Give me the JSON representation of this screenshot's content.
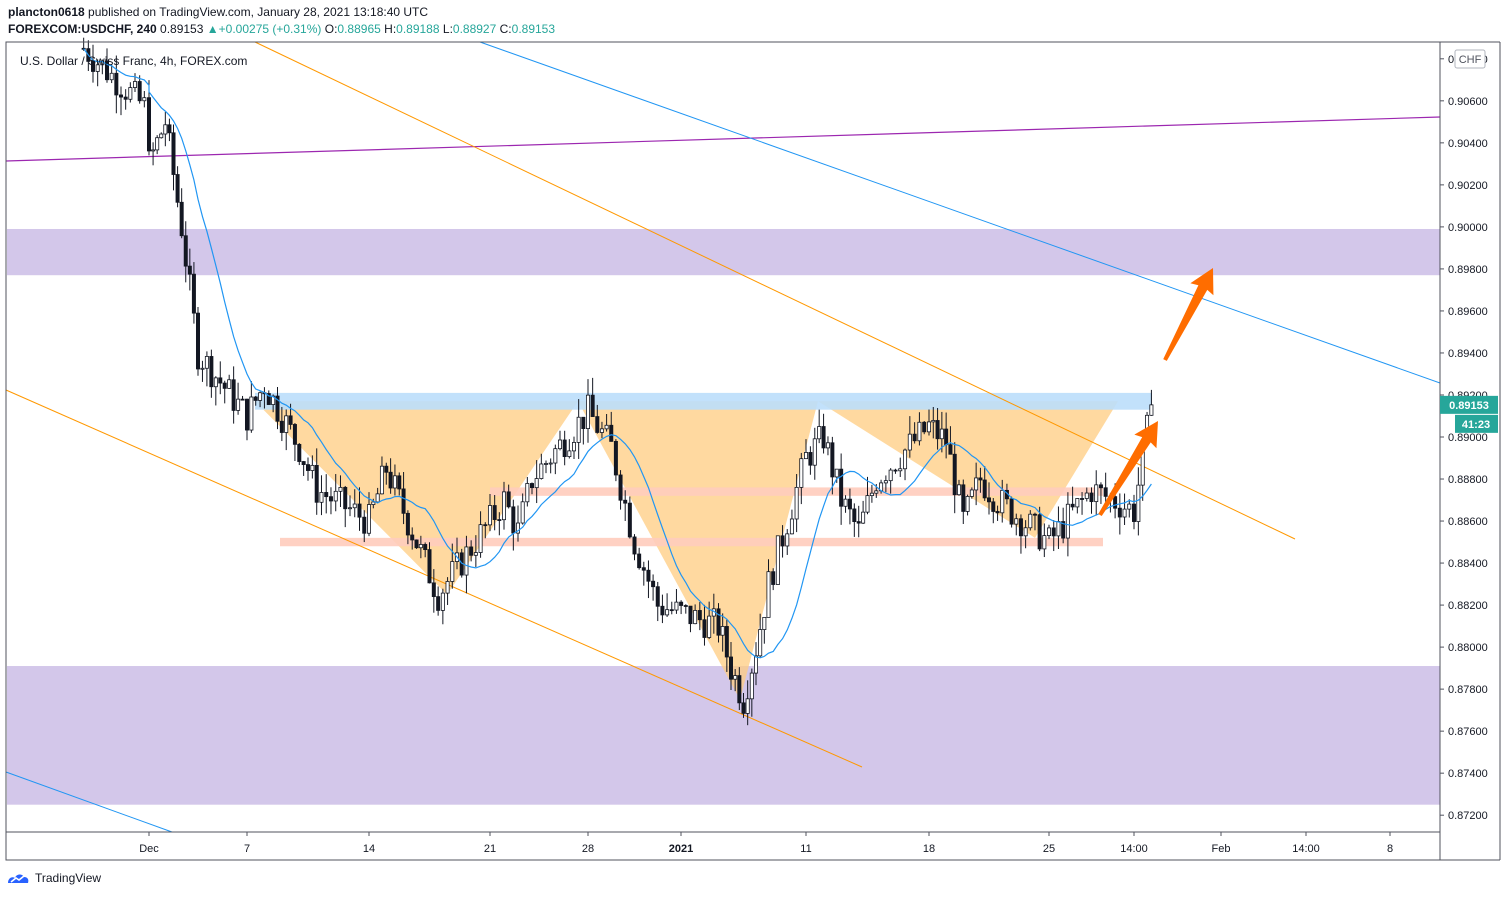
{
  "header": {
    "publisher": "plancton0618",
    "published_text": "published on TradingView.com, January 28, 2021 13:18:40 UTC"
  },
  "legend": {
    "symbol_interval": "FOREXCOM:USDCHF, 240",
    "last": "0.89153",
    "change_arrow": "▲",
    "change": "+0.00275 (+0.31%)",
    "o_label": "O:",
    "o": "0.88965",
    "h_label": "H:",
    "h": "0.89188",
    "l_label": "L:",
    "l": "0.88927",
    "c_label": "C:",
    "c": "0.89153",
    "description": "U.S. Dollar / Swiss Franc, 4h, FOREX.com"
  },
  "price_axis": {
    "currency_badge": "CHF",
    "ticks": [
      "0.90800",
      "0.90600",
      "0.90400",
      "0.90200",
      "0.90000",
      "0.89800",
      "0.89600",
      "0.89400",
      "0.89200",
      "0.89000",
      "0.88800",
      "0.88600",
      "0.88400",
      "0.88200",
      "0.88000",
      "0.87800",
      "0.87600",
      "0.87400",
      "0.87200"
    ],
    "last_price_label": "0.89153",
    "countdown_label": "41:23"
  },
  "time_axis": {
    "ticks": [
      {
        "label": "Dec",
        "bold": false
      },
      {
        "label": "7",
        "bold": false
      },
      {
        "label": "14",
        "bold": false
      },
      {
        "label": "21",
        "bold": false
      },
      {
        "label": "28",
        "bold": false
      },
      {
        "label": "2021",
        "bold": true
      },
      {
        "label": "11",
        "bold": false
      },
      {
        "label": "18",
        "bold": false
      },
      {
        "label": "25",
        "bold": false
      },
      {
        "label": "14:00",
        "bold": false
      },
      {
        "label": "Feb",
        "bold": false
      },
      {
        "label": "14:00",
        "bold": false
      },
      {
        "label": "8",
        "bold": false
      }
    ]
  },
  "footer": {
    "brand": "TradingView"
  },
  "colors": {
    "up_candle": "#ffffff",
    "down_candle": "#131722",
    "ma_line": "#2196f3",
    "zone_fill": "#d1c4e9",
    "pattern_fill": "#ffcc80",
    "level_fill": "#ffccbc",
    "resistance_fill": "#bbdefb",
    "channel_line": "#ff9800",
    "trend_line_blue": "#2196f3",
    "trend_line_purple": "#9c27b0",
    "arrow": "#ff6d00",
    "price_badge": "#26a69a"
  },
  "chart_data": {
    "type": "candlestick",
    "title": "U.S. Dollar / Swiss Franc, 4h, FOREX.com",
    "symbol": "FOREXCOM:USDCHF",
    "interval": "240",
    "ylim": [
      0.8712,
      0.9088
    ],
    "last_close": 0.89153,
    "price_path": [
      [
        "Nov 26",
        0.9085
      ],
      [
        "Nov 30",
        0.9055
      ],
      [
        "Dec 1",
        0.903
      ],
      [
        "Dec 2",
        0.905
      ],
      [
        "Dec 3",
        0.9
      ],
      [
        "Dec 4",
        0.894
      ],
      [
        "Dec 7",
        0.891
      ],
      [
        "Dec 8",
        0.8925
      ],
      [
        "Dec 10",
        0.8895
      ],
      [
        "Dec 11",
        0.8875
      ],
      [
        "Dec 14",
        0.886
      ],
      [
        "Dec 15",
        0.8885
      ],
      [
        "Dec 17",
        0.8845
      ],
      [
        "Dec 18",
        0.8825
      ],
      [
        "Dec 21",
        0.886
      ],
      [
        "Dec 22",
        0.887
      ],
      [
        "Dec 23",
        0.8855
      ],
      [
        "Dec 24",
        0.888
      ],
      [
        "Dec 28",
        0.8912
      ],
      [
        "Dec 29",
        0.8895
      ],
      [
        "Dec 30",
        0.885
      ],
      [
        "Dec 31",
        0.882
      ],
      [
        "Jan 4",
        0.881
      ],
      [
        "Jan 5",
        0.879
      ],
      [
        "Jan 6",
        0.8775
      ],
      [
        "Jan 7",
        0.88
      ],
      [
        "Jan 8",
        0.883
      ],
      [
        "Jan 11",
        0.889
      ],
      [
        "Jan 12",
        0.89
      ],
      [
        "Jan 13",
        0.887
      ],
      [
        "Jan 14",
        0.8855
      ],
      [
        "Jan 15",
        0.888
      ],
      [
        "Jan 18",
        0.8905
      ],
      [
        "Jan 19",
        0.8898
      ],
      [
        "Jan 20",
        0.886
      ],
      [
        "Jan 21",
        0.888
      ],
      [
        "Jan 22",
        0.887
      ],
      [
        "Jan 25",
        0.885
      ],
      [
        "Jan 26",
        0.8875
      ],
      [
        "Jan 27",
        0.8865
      ],
      [
        "Jan 28",
        0.89153
      ]
    ],
    "moving_average_color": "#2196f3",
    "zones": [
      {
        "name": "upper supply zone",
        "from": 0.8977,
        "to": 0.8999
      },
      {
        "name": "lower demand zone",
        "from": 0.8725,
        "to": 0.8791
      }
    ],
    "levels": [
      {
        "name": "neckline resistance",
        "price": 0.8917
      },
      {
        "name": "mid level",
        "price": 0.8874
      },
      {
        "name": "lower level",
        "price": 0.885
      }
    ],
    "trend_lines": [
      {
        "name": "purple horizontal",
        "from": [
          "Nov 26",
          0.9027
        ],
        "to": [
          "Feb 10",
          0.9049
        ]
      },
      {
        "name": "descending blue",
        "from": [
          "Dec 1",
          0.9088
        ],
        "to": [
          "Feb 10",
          0.8917
        ]
      }
    ],
    "patterns": [
      "inverse head and shoulders"
    ]
  }
}
